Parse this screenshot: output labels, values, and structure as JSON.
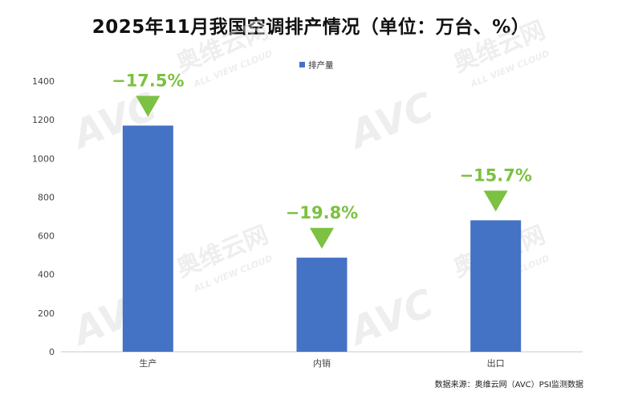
{
  "chart_data": {
    "type": "bar",
    "title": "2025年11月我国空调排产情况（单位：万台、%）",
    "categories": [
      "生产",
      "内销",
      "出口"
    ],
    "series": [
      {
        "name": "排产量",
        "values": [
          1170,
          487,
          680
        ],
        "color": "#4472c4"
      }
    ],
    "annotations": [
      "−17.5%",
      "−19.8%",
      "−15.7%"
    ],
    "annotation_color": "#7cc142",
    "ylim": [
      0,
      1400
    ],
    "yticks": [
      0,
      200,
      400,
      600,
      800,
      1000,
      1200,
      1400
    ],
    "xlabel": "",
    "ylabel": "",
    "grid": false,
    "legend_position": "top-center"
  },
  "source": "数据来源：奥维云网（AVC）PSI监测数据",
  "watermark": {
    "brand": "奥维云网",
    "logo": "AVC",
    "tagline": "ALL VIEW CLOUD"
  }
}
